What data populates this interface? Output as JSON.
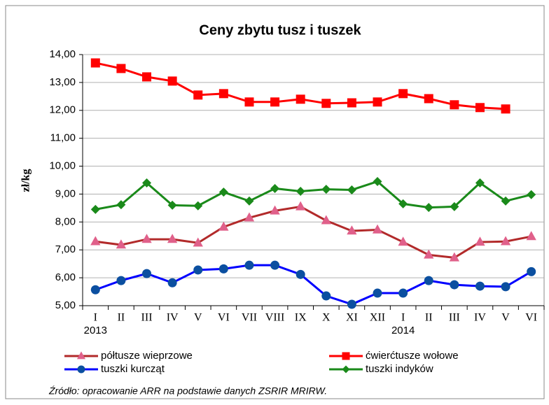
{
  "chart_data": {
    "type": "line",
    "title": "Ceny zbytu tusz i tuszek",
    "y_label": "zł/kg",
    "source": "Źródło: opracowanie ARR na podstawie danych ZSRIR MRIRW.",
    "categories": [
      "I",
      "II",
      "III",
      "IV",
      "V",
      "VI",
      "VII",
      "VIII",
      "IX",
      "X",
      "XI",
      "XII",
      "I",
      "II",
      "III",
      "IV",
      "V",
      "VI"
    ],
    "year_labels": [
      "2013",
      null,
      null,
      null,
      null,
      null,
      null,
      null,
      null,
      null,
      null,
      null,
      "2014",
      null,
      null,
      null,
      null,
      null
    ],
    "ylim": [
      5,
      14
    ],
    "yticks": [
      {
        "value": 5,
        "label": "5,00"
      },
      {
        "value": 6,
        "label": "6,00"
      },
      {
        "value": 7,
        "label": "7,00"
      },
      {
        "value": 8,
        "label": "8,00"
      },
      {
        "value": 9,
        "label": "9,00"
      },
      {
        "value": 10,
        "label": "10,00"
      },
      {
        "value": 11,
        "label": "11,00"
      },
      {
        "value": 12,
        "label": "12,00"
      },
      {
        "value": 13,
        "label": "13,00"
      },
      {
        "value": 14,
        "label": "14,00"
      }
    ],
    "grid": true,
    "series": [
      {
        "name": "półtusze wieprzowe",
        "color": "#b22a2a",
        "marker": "triangle",
        "marker_color": "#e0608a",
        "values": [
          7.3,
          7.18,
          7.38,
          7.38,
          7.25,
          7.82,
          8.15,
          8.4,
          8.55,
          8.05,
          7.68,
          7.72,
          7.28,
          6.82,
          6.72,
          7.28,
          7.3,
          7.48
        ]
      },
      {
        "name": "ćwierćtusze wołowe",
        "color": "#ff0000",
        "marker": "square",
        "marker_color": "#ff0000",
        "values": [
          13.7,
          13.5,
          13.2,
          13.05,
          12.55,
          12.6,
          12.3,
          12.3,
          12.4,
          12.25,
          12.27,
          12.3,
          12.6,
          12.42,
          12.2,
          12.1,
          12.05,
          null
        ]
      },
      {
        "name": "tuszki kurcząt",
        "color": "#0000ff",
        "marker": "circle",
        "marker_color": "#0b4fa0",
        "values": [
          5.57,
          5.9,
          6.15,
          5.82,
          6.28,
          6.32,
          6.45,
          6.45,
          6.12,
          5.35,
          5.05,
          5.45,
          5.45,
          5.9,
          5.75,
          5.7,
          5.68,
          6.22
        ]
      },
      {
        "name": "tuszki indyków",
        "color": "#1a8a1a",
        "marker": "diamond",
        "marker_color": "#1a8a1a",
        "values": [
          8.45,
          8.62,
          9.4,
          8.6,
          8.58,
          9.07,
          8.75,
          9.2,
          9.1,
          9.17,
          9.15,
          9.45,
          8.65,
          8.52,
          8.55,
          9.4,
          8.75,
          8.98
        ]
      }
    ]
  }
}
